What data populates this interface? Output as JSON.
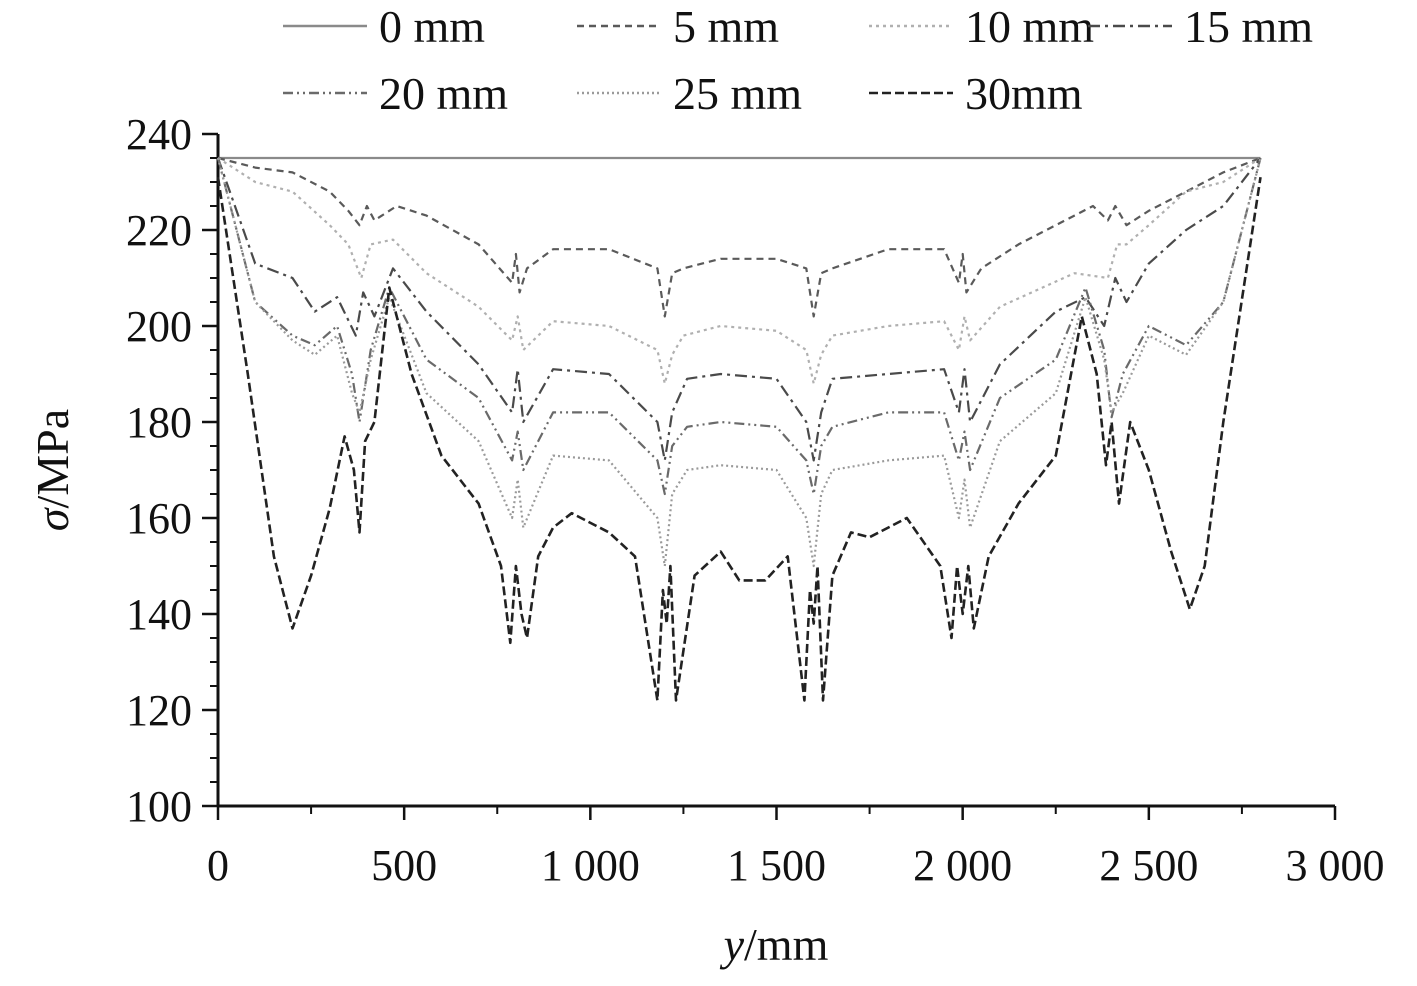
{
  "chart_data": {
    "type": "line",
    "xlabel": {
      "italic": "y",
      "rest": "/mm"
    },
    "ylabel": {
      "italic": "σ",
      "rest": "/MPa"
    },
    "xlim": [
      0,
      3000
    ],
    "ylim": [
      100,
      240
    ],
    "x_ticks": [
      0,
      500,
      1000,
      1500,
      2000,
      2500,
      3000
    ],
    "x_tick_labels": [
      "0",
      "500",
      "1 000",
      "1 500",
      "2 000",
      "2 500",
      "3 000"
    ],
    "y_ticks": [
      100,
      120,
      140,
      160,
      180,
      200,
      220,
      240
    ],
    "y_tick_labels": [
      "100",
      "120",
      "140",
      "160",
      "180",
      "200",
      "220",
      "240"
    ],
    "grid": false,
    "legend_position": "top",
    "series": [
      {
        "name": "0 mm",
        "color": "#8a8a8a",
        "x": [
          0,
          1400,
          2800
        ],
        "y": [
          235,
          235,
          235
        ]
      },
      {
        "name": "5 mm",
        "color": "#5a5a5a",
        "x": [
          0,
          100,
          200,
          300,
          350,
          380,
          400,
          420,
          480,
          560,
          700,
          790,
          800,
          810,
          830,
          900,
          1050,
          1180,
          1200,
          1220,
          1250,
          1350,
          1500,
          1580,
          1600,
          1620,
          1650,
          1800,
          1950,
          1990,
          2000,
          2010,
          2050,
          2150,
          2300,
          2350,
          2390,
          2410,
          2440,
          2500,
          2600,
          2700,
          2800
        ],
        "y": [
          235,
          233,
          232,
          228,
          224,
          221,
          225,
          222,
          225,
          223,
          217,
          209,
          215,
          207,
          212,
          216,
          216,
          212,
          202,
          211,
          212,
          214,
          214,
          212,
          202,
          211,
          212,
          216,
          216,
          209,
          215,
          207,
          212,
          217,
          223,
          225,
          222,
          225,
          221,
          224,
          228,
          232,
          235
        ]
      },
      {
        "name": "10 mm",
        "color": "#b0b0b0",
        "x": [
          0,
          100,
          200,
          300,
          350,
          385,
          410,
          470,
          560,
          700,
          790,
          805,
          820,
          900,
          1050,
          1180,
          1200,
          1220,
          1250,
          1350,
          1500,
          1580,
          1600,
          1620,
          1650,
          1800,
          1950,
          1990,
          2005,
          2020,
          2100,
          2300,
          2390,
          2415,
          2440,
          2500,
          2600,
          2700,
          2800
        ],
        "y": [
          235,
          230,
          228,
          221,
          217,
          210,
          217,
          218,
          211,
          204,
          197,
          202,
          195,
          201,
          200,
          195,
          188,
          194,
          198,
          200,
          199,
          195,
          188,
          194,
          198,
          200,
          201,
          195,
          202,
          197,
          204,
          211,
          210,
          217,
          217,
          221,
          228,
          230,
          235
        ]
      },
      {
        "name": "15 mm",
        "color": "#4a4a4a",
        "x": [
          0,
          100,
          200,
          260,
          320,
          370,
          390,
          420,
          470,
          560,
          700,
          790,
          805,
          820,
          900,
          1050,
          1180,
          1200,
          1220,
          1260,
          1350,
          1500,
          1580,
          1600,
          1620,
          1650,
          1800,
          1950,
          1990,
          2005,
          2020,
          2100,
          2250,
          2330,
          2380,
          2410,
          2440,
          2500,
          2600,
          2700,
          2800
        ],
        "y": [
          235,
          213,
          210,
          203,
          206,
          198,
          207,
          202,
          212,
          203,
          192,
          182,
          191,
          180,
          191,
          190,
          180,
          172,
          182,
          189,
          190,
          189,
          180,
          172,
          182,
          189,
          190,
          191,
          182,
          191,
          180,
          192,
          203,
          206,
          200,
          210,
          205,
          213,
          220,
          225,
          235
        ]
      },
      {
        "name": "20 mm",
        "color": "#6a6a6a",
        "x": [
          0,
          100,
          200,
          260,
          320,
          360,
          380,
          410,
          460,
          560,
          700,
          790,
          805,
          820,
          900,
          1050,
          1180,
          1200,
          1220,
          1260,
          1350,
          1500,
          1580,
          1600,
          1620,
          1650,
          1800,
          1950,
          1990,
          2005,
          2020,
          2100,
          2250,
          2330,
          2380,
          2400,
          2430,
          2500,
          2600,
          2700,
          2800
        ],
        "y": [
          235,
          205,
          198,
          196,
          200,
          190,
          180,
          195,
          208,
          193,
          185,
          172,
          178,
          170,
          182,
          182,
          172,
          165,
          175,
          179,
          180,
          179,
          172,
          165,
          175,
          179,
          182,
          182,
          172,
          178,
          170,
          185,
          193,
          208,
          195,
          181,
          190,
          200,
          196,
          205,
          235
        ]
      },
      {
        "name": "25 mm",
        "color": "#9a9a9a",
        "x": [
          0,
          100,
          200,
          260,
          320,
          360,
          380,
          410,
          460,
          560,
          700,
          790,
          805,
          820,
          900,
          1050,
          1180,
          1200,
          1220,
          1260,
          1350,
          1500,
          1580,
          1600,
          1620,
          1650,
          1800,
          1950,
          1990,
          2005,
          2020,
          2100,
          2250,
          2330,
          2380,
          2400,
          2430,
          2500,
          2600,
          2700,
          2800
        ],
        "y": [
          235,
          205,
          197,
          194,
          198,
          186,
          182,
          193,
          206,
          186,
          176,
          160,
          168,
          158,
          173,
          172,
          160,
          150,
          165,
          170,
          171,
          170,
          160,
          150,
          165,
          170,
          172,
          173,
          160,
          168,
          158,
          176,
          186,
          206,
          193,
          182,
          186,
          198,
          194,
          205,
          235
        ]
      },
      {
        "name": "30mm",
        "color": "#222222",
        "x": [
          0,
          80,
          150,
          200,
          250,
          300,
          340,
          365,
          380,
          395,
          420,
          460,
          520,
          600,
          700,
          760,
          785,
          800,
          815,
          830,
          860,
          900,
          950,
          1050,
          1120,
          1180,
          1195,
          1205,
          1215,
          1230,
          1280,
          1350,
          1400,
          1470,
          1530,
          1575,
          1590,
          1600,
          1610,
          1625,
          1650,
          1700,
          1750,
          1850,
          1940,
          1970,
          1985,
          2000,
          2015,
          2030,
          2070,
          2150,
          2250,
          2320,
          2360,
          2385,
          2400,
          2420,
          2450,
          2500,
          2560,
          2610,
          2650,
          2700,
          2800
        ],
        "y": [
          231,
          190,
          152,
          137,
          148,
          162,
          177,
          170,
          157,
          176,
          180,
          208,
          190,
          173,
          163,
          150,
          134,
          150,
          140,
          135,
          152,
          158,
          161,
          157,
          152,
          122,
          145,
          138,
          150,
          122,
          148,
          153,
          147,
          147,
          152,
          122,
          145,
          138,
          150,
          122,
          148,
          157,
          156,
          160,
          150,
          135,
          150,
          140,
          150,
          137,
          152,
          163,
          173,
          202,
          190,
          171,
          180,
          163,
          180,
          170,
          153,
          141,
          150,
          180,
          231
        ]
      }
    ]
  }
}
